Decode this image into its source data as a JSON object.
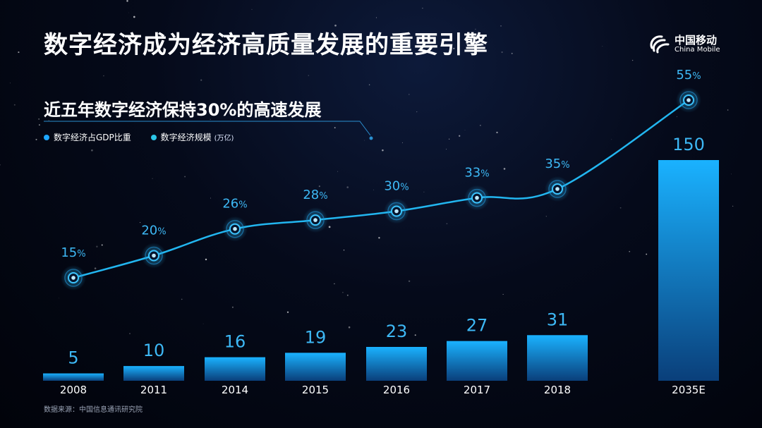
{
  "header": {
    "title": "数字经济成为经济高质量发展的重要引擎",
    "logo_cn": "中国移动",
    "logo_en": "China Mobile"
  },
  "subtitle": "近五年数字经济保持30%的高速发展",
  "legend": {
    "share_label": "数字经济占GDP比重",
    "scale_label": "数字经济规模",
    "scale_unit": "(万亿)"
  },
  "source": "数据来源：中国信息通讯研究院",
  "colors": {
    "bar_top": "#1ab2ff",
    "bar_bottom": "#0a3f7a",
    "line": "#22b6f0",
    "text_blue": "#3db8f5",
    "background": "#050a1a"
  },
  "chart_data": {
    "type": "bar+line",
    "categories": [
      "2008",
      "2011",
      "2014",
      "2015",
      "2016",
      "2017",
      "2018",
      "2035E"
    ],
    "series": [
      {
        "name": "数字经济规模",
        "type": "bar",
        "values": [
          5,
          10,
          16,
          19,
          23,
          27,
          31,
          150
        ]
      },
      {
        "name": "数字经济占GDP比重",
        "type": "line",
        "values": [
          15,
          20,
          26,
          28,
          30,
          33,
          35,
          55
        ],
        "unit": "%"
      }
    ],
    "legend_position": "top-left",
    "grid": false
  }
}
